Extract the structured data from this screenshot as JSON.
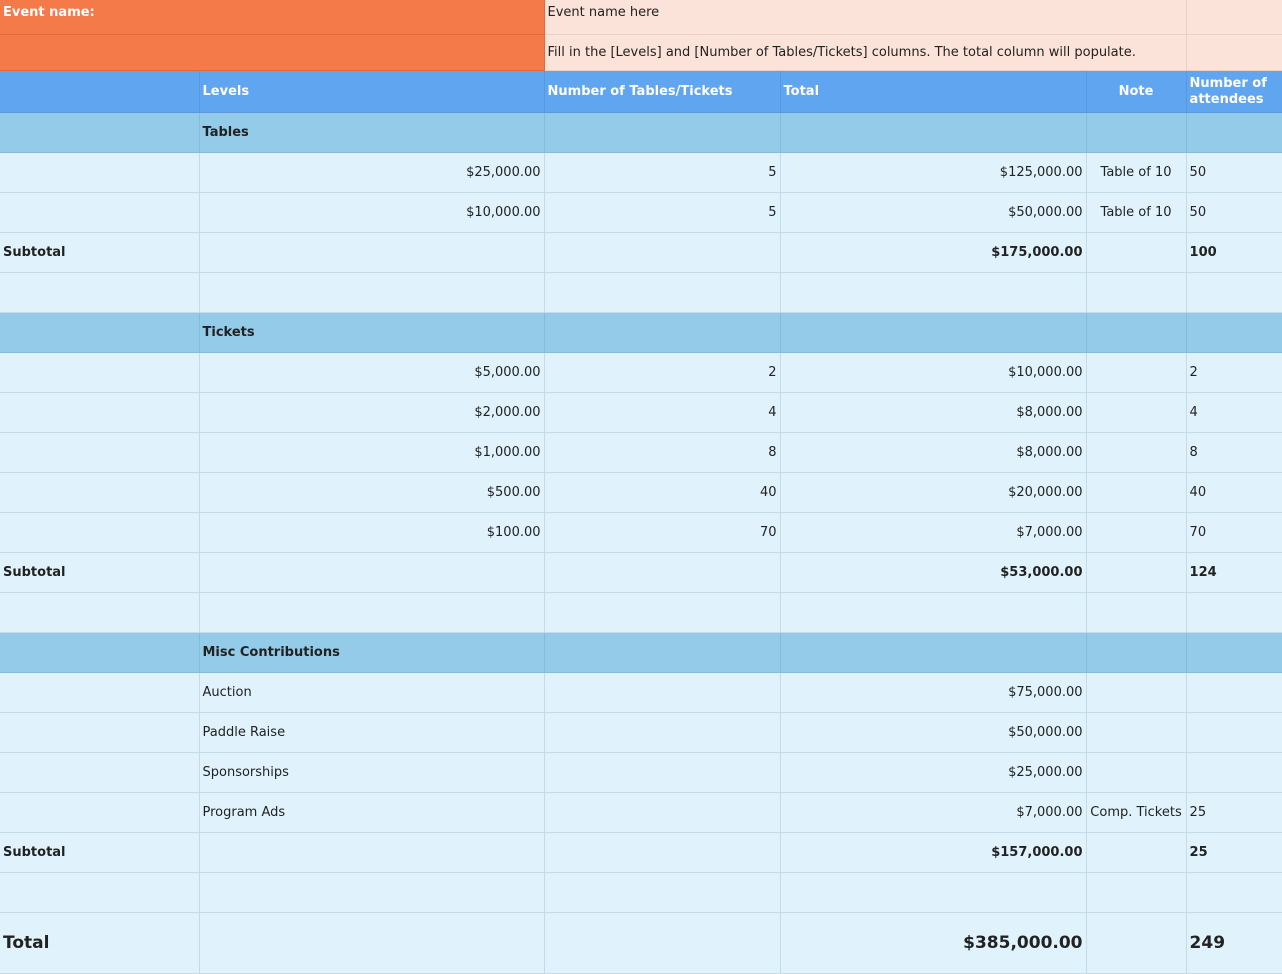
{
  "event_label": "Event name:",
  "event_name": "Event name here",
  "instructions": "Fill in the [Levels] and [Number of Tables/Tickets] columns. The total column will populate.",
  "headers": [
    "",
    "Levels",
    "Number of Tables/Tickets",
    "Total",
    "Note",
    "Number of attendees"
  ],
  "rows": [
    {
      "type": "section",
      "cells": [
        "",
        "Tables",
        "",
        "",
        "",
        ""
      ]
    },
    {
      "type": "data",
      "cells": [
        "",
        "$25,000.00",
        "5",
        "$125,000.00",
        "Table of 10",
        "50"
      ]
    },
    {
      "type": "data",
      "cells": [
        "",
        "$10,000.00",
        "5",
        "$50,000.00",
        "Table of 10",
        "50"
      ]
    },
    {
      "type": "sub",
      "cells": [
        "Subtotal",
        "",
        "",
        "$175,000.00",
        "",
        "100"
      ]
    },
    {
      "type": "data",
      "cells": [
        "",
        "",
        "",
        "",
        "",
        ""
      ]
    },
    {
      "type": "section",
      "cells": [
        "",
        "Tickets",
        "",
        "",
        "",
        ""
      ]
    },
    {
      "type": "data",
      "cells": [
        "",
        "$5,000.00",
        "2",
        "$10,000.00",
        "",
        "2"
      ]
    },
    {
      "type": "data",
      "cells": [
        "",
        "$2,000.00",
        "4",
        "$8,000.00",
        "",
        "4"
      ]
    },
    {
      "type": "data",
      "cells": [
        "",
        "$1,000.00",
        "8",
        "$8,000.00",
        "",
        "8"
      ]
    },
    {
      "type": "data",
      "cells": [
        "",
        "$500.00",
        "40",
        "$20,000.00",
        "",
        "40"
      ]
    },
    {
      "type": "data",
      "cells": [
        "",
        "$100.00",
        "70",
        "$7,000.00",
        "",
        "70"
      ]
    },
    {
      "type": "sub",
      "cells": [
        "Subtotal",
        "",
        "",
        "$53,000.00",
        "",
        "124"
      ]
    },
    {
      "type": "data",
      "cells": [
        "",
        "",
        "",
        "",
        "",
        ""
      ]
    },
    {
      "type": "section",
      "cells": [
        "",
        "Misc Contributions",
        "",
        "",
        "",
        ""
      ]
    },
    {
      "type": "misc",
      "cells": [
        "",
        "Auction",
        "",
        "$75,000.00",
        "",
        ""
      ]
    },
    {
      "type": "misc",
      "cells": [
        "",
        "Paddle Raise",
        "",
        "$50,000.00",
        "",
        ""
      ]
    },
    {
      "type": "misc",
      "cells": [
        "",
        "Sponsorships",
        "",
        "$25,000.00",
        "",
        ""
      ]
    },
    {
      "type": "misc",
      "cells": [
        "",
        "Program Ads",
        "",
        "$7,000.00",
        "Comp. Tickets",
        "25"
      ]
    },
    {
      "type": "sub",
      "cells": [
        "Subtotal",
        "",
        "",
        "$157,000.00",
        "",
        "25"
      ]
    },
    {
      "type": "data",
      "cells": [
        "",
        "",
        "",
        "",
        "",
        ""
      ]
    },
    {
      "type": "total",
      "cells": [
        "Total",
        "",
        "",
        "$385,000.00",
        "",
        "249"
      ]
    }
  ]
}
